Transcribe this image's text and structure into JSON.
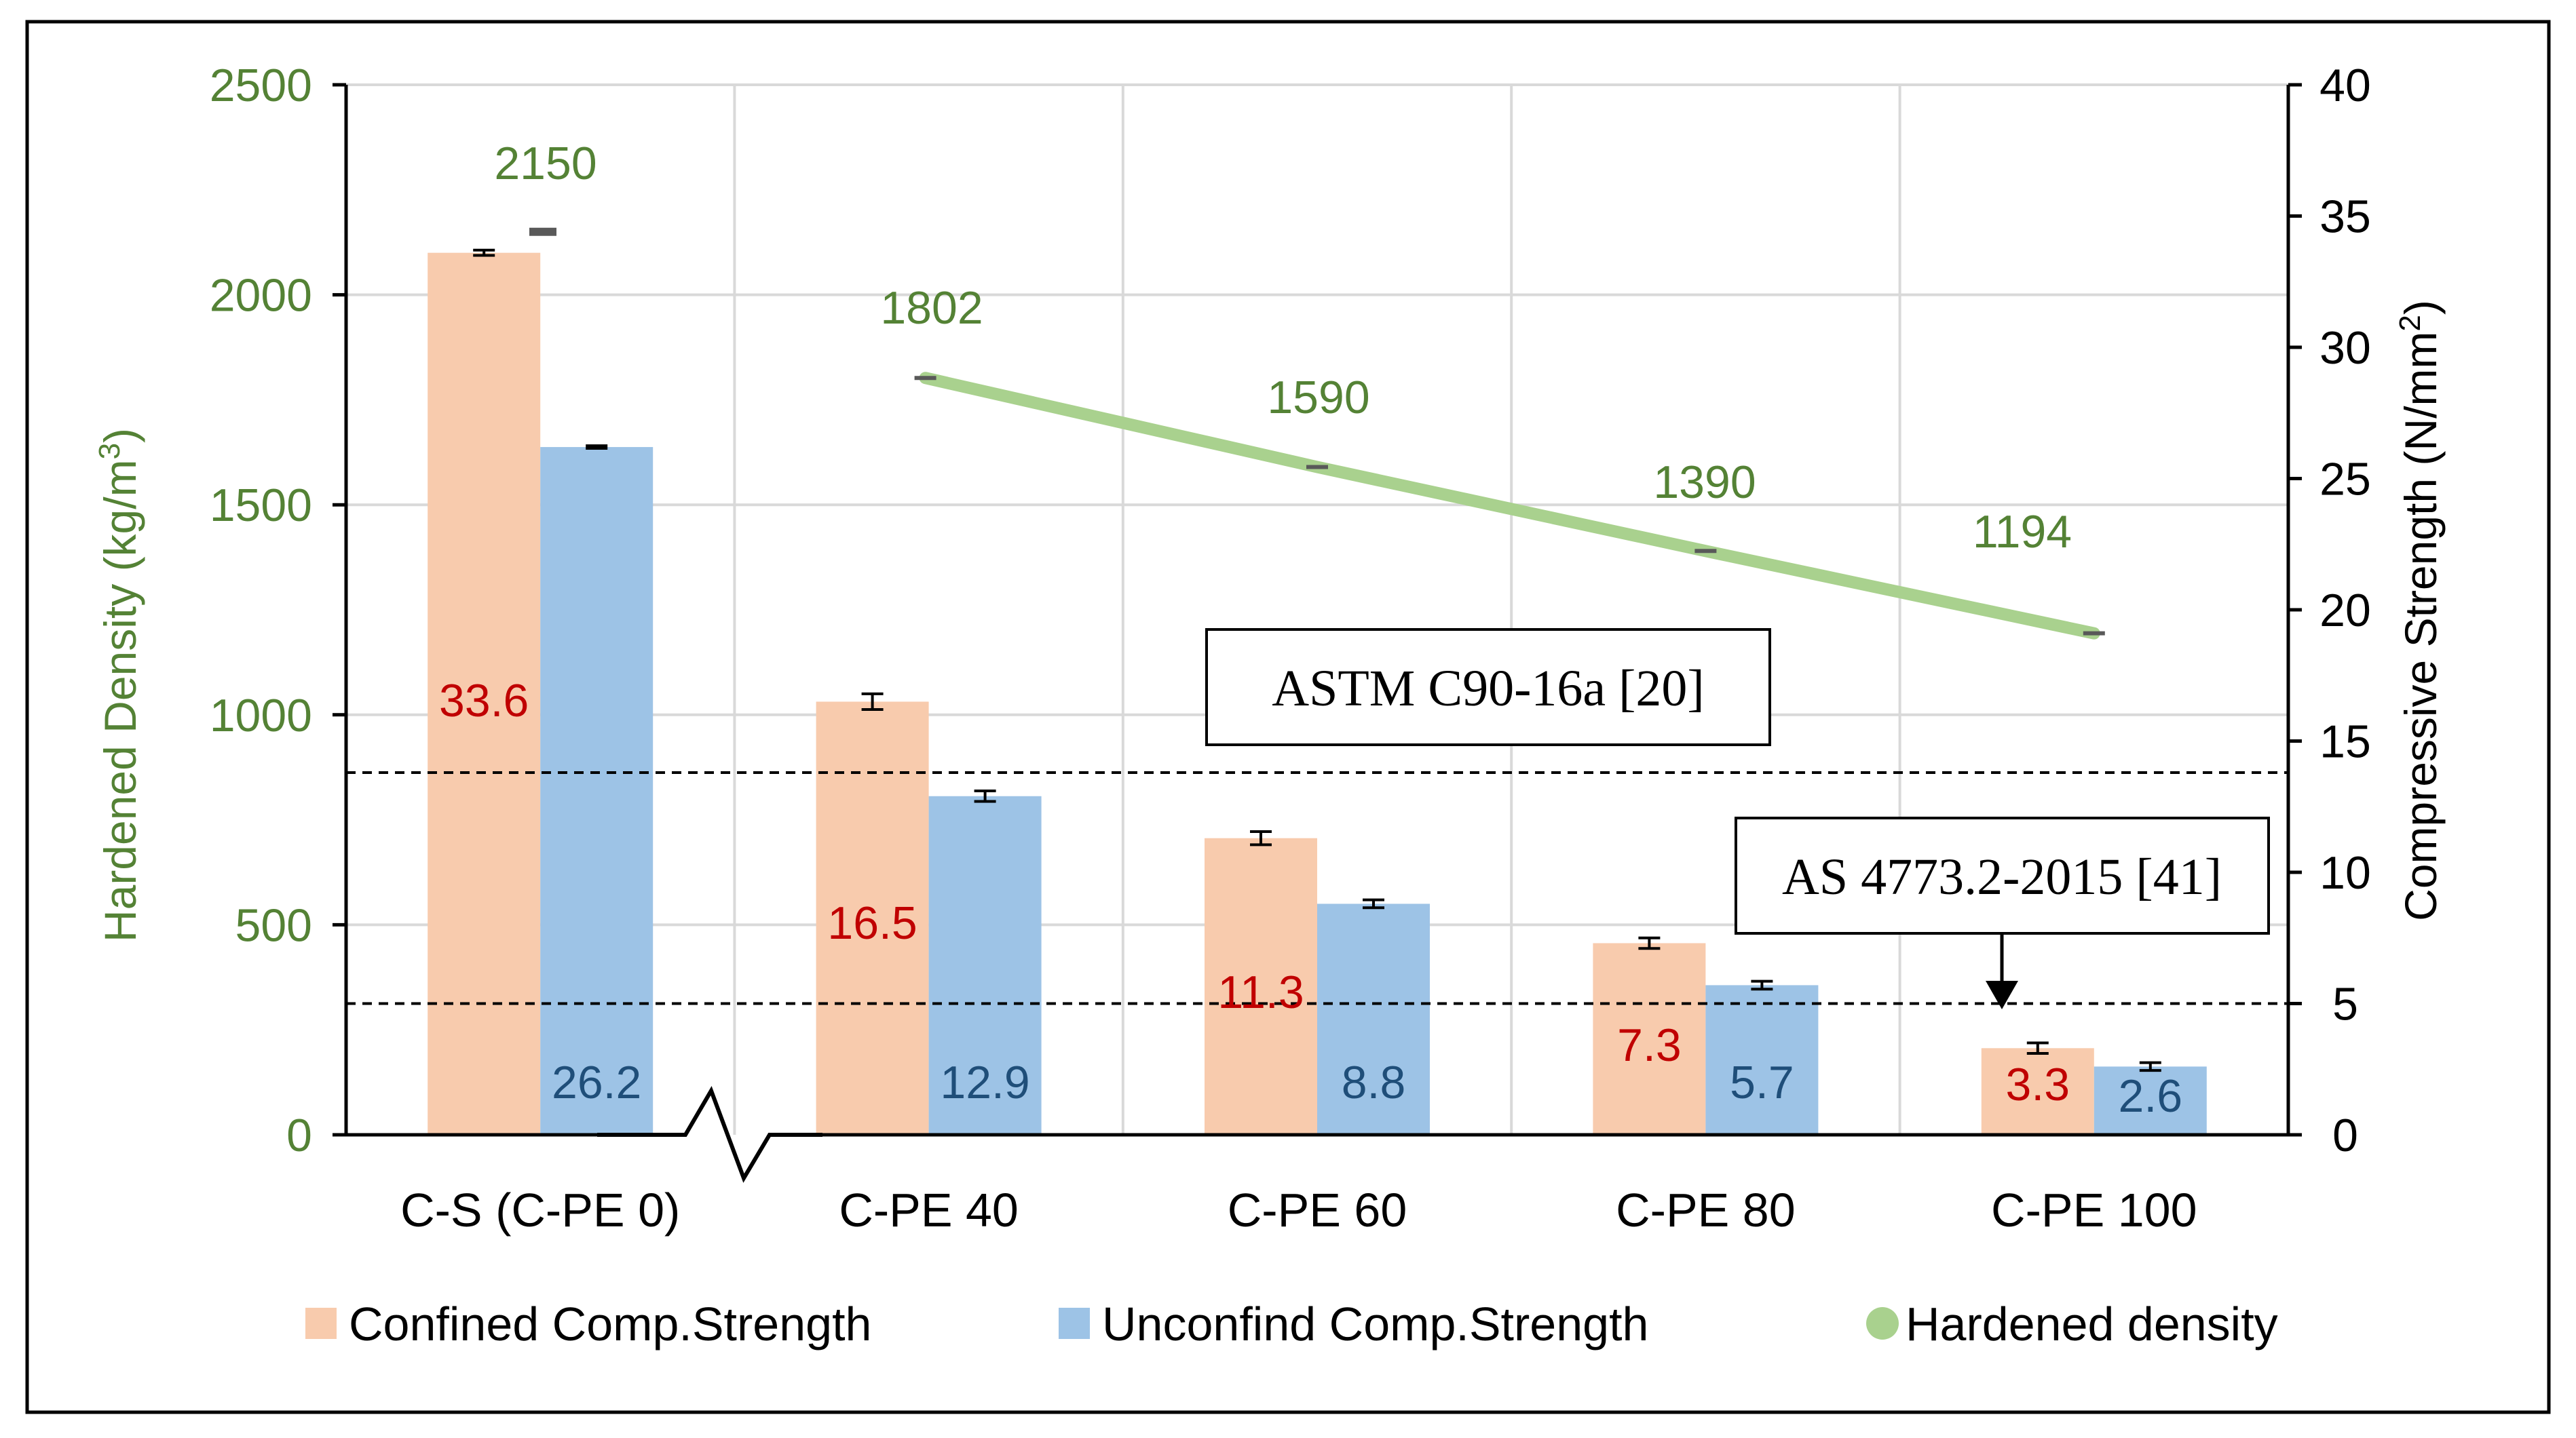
{
  "chart_data": {
    "type": "bar",
    "categories": [
      "C-S (C-PE 0)",
      "C-PE 40",
      "C-PE 60",
      "C-PE 80",
      "C-PE 100"
    ],
    "y_left": {
      "label_main": "Hardened Density (kg/m",
      "label_sup": "3",
      "label_end": ")",
      "min": 0,
      "max": 2500,
      "ticks": [
        "0",
        "500",
        "1000",
        "1500",
        "2000",
        "2500"
      ]
    },
    "y_right": {
      "label_main": "Compressive Strength (N/mm",
      "label_sup": "2",
      "label_end": ")",
      "min": 0,
      "max": 40,
      "ticks": [
        "0",
        "5",
        "10",
        "15",
        "20",
        "25",
        "30",
        "35",
        "40"
      ]
    },
    "series": [
      {
        "name": "Confined Comp.Strength",
        "axis": "right",
        "color": "#f8cbad",
        "label_color": "#c00000",
        "values": [
          33.6,
          16.5,
          11.3,
          7.3,
          3.3
        ],
        "labels": [
          "33.6",
          "16.5",
          "11.3",
          "7.3",
          "3.3"
        ],
        "errors": [
          0.1,
          0.3,
          0.25,
          0.2,
          0.2
        ]
      },
      {
        "name": "Unconfind Comp.Strength",
        "axis": "right",
        "color": "#9dc3e6",
        "label_color": "#1f4e79",
        "values": [
          26.2,
          12.9,
          8.8,
          5.7,
          2.6
        ],
        "labels": [
          "26.2",
          "12.9",
          "8.8",
          "5.7",
          "2.6"
        ],
        "errors": [
          0.05,
          0.2,
          0.15,
          0.15,
          0.15
        ]
      },
      {
        "name": "Hardened density",
        "axis": "left",
        "color": "#a9d18e",
        "label_color": "#548235",
        "values": [
          2150,
          1802,
          1590,
          1390,
          1194
        ],
        "labels": [
          "2150",
          "1802",
          "1590",
          "1390",
          "1194"
        ]
      }
    ],
    "reference_lines": [
      {
        "name": "ASTM C90-16a [20]",
        "value": 13.8
      },
      {
        "name": "AS 4773.2-2015 [41]",
        "value": 5.0
      }
    ],
    "grid": true,
    "legend": "bottom"
  },
  "colors": {
    "axis_left_text": "#548235",
    "axis_right_text": "#000000",
    "grid": "#d9d9d9",
    "frame": "#000000"
  }
}
